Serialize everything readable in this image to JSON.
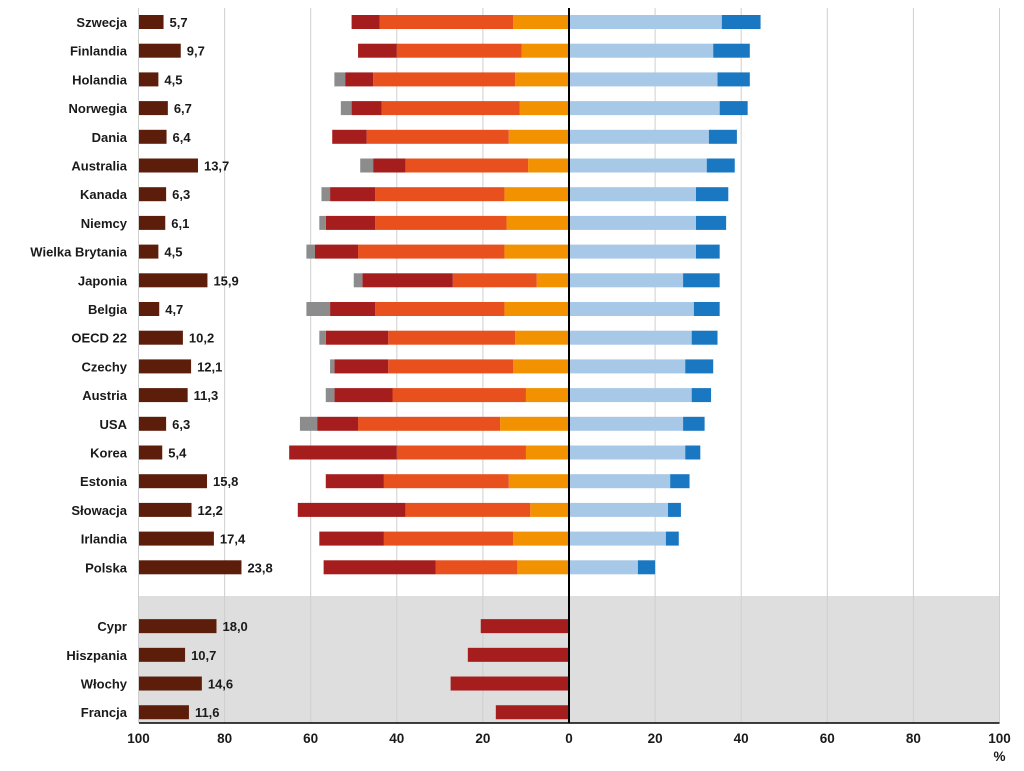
{
  "chart_data": {
    "type": "bar",
    "orientation": "horizontal",
    "countries": [
      "Szwecja",
      "Finlandia",
      "Holandia",
      "Norwegia",
      "Dania",
      "Australia",
      "Kanada",
      "Niemcy",
      "Wielka Brytania",
      "Japonia",
      "Belgia",
      "OECD 22",
      "Czechy",
      "Austria",
      "USA",
      "Korea",
      "Estonia",
      "Słowacja",
      "Irlandia",
      "Polska"
    ],
    "left_values": [
      5.7,
      9.7,
      4.5,
      6.7,
      6.4,
      13.7,
      6.3,
      6.1,
      4.5,
      15.9,
      4.7,
      10.2,
      12.1,
      11.3,
      6.3,
      5.4,
      15.8,
      12.2,
      17.4,
      23.8
    ],
    "left_value_labels": [
      "5,7",
      "9,7",
      "4,5",
      "6,7",
      "6,4",
      "13,7",
      "6,3",
      "6,1",
      "4,5",
      "15,9",
      "4,7",
      "10,2",
      "12,1",
      "11,3",
      "6,3",
      "5,4",
      "15,8",
      "12,2",
      "17,4",
      "23,8"
    ],
    "stacked_left": {
      "series": [
        {
          "name": "segment-1",
          "color": "#f39200",
          "values": [
            13,
            11,
            12.5,
            11.5,
            14,
            9.5,
            15,
            14.5,
            15,
            7.5,
            15,
            12.5,
            13,
            10,
            16,
            10,
            14,
            9,
            13,
            12
          ]
        },
        {
          "name": "segment-2",
          "color": "#e8501e",
          "values": [
            31,
            29,
            33,
            32,
            33,
            28.5,
            30,
            30.5,
            34,
            19.5,
            30,
            29.5,
            29,
            31,
            33,
            30,
            29,
            29,
            30,
            19
          ]
        },
        {
          "name": "segment-3",
          "color": "#a61d1d",
          "values": [
            6.5,
            9,
            6.5,
            7,
            8,
            7.5,
            10.5,
            11.5,
            10,
            21,
            10.5,
            14.5,
            12.5,
            13.5,
            9.5,
            25,
            13.5,
            25,
            15,
            26
          ]
        },
        {
          "name": "segment-4",
          "color": "#8c8c8c",
          "values": [
            0,
            0,
            2.5,
            2.5,
            0,
            3,
            2,
            1.5,
            2,
            2,
            5.5,
            1.5,
            1,
            2,
            4,
            0,
            0,
            0,
            0,
            0
          ]
        }
      ]
    },
    "stacked_right": {
      "series": [
        {
          "name": "segment-1",
          "color": "#a8c8e8",
          "values": [
            35.5,
            33.5,
            34.5,
            35,
            32.5,
            32,
            29.5,
            29.5,
            29.5,
            26.5,
            29,
            28.5,
            27,
            28.5,
            26.5,
            27,
            23.5,
            23,
            22.5,
            16
          ]
        },
        {
          "name": "segment-2",
          "color": "#1a78c2",
          "values": [
            9,
            8.5,
            7.5,
            6.5,
            6.5,
            6.5,
            7.5,
            7,
            5.5,
            8.5,
            6,
            6,
            6.5,
            4.5,
            5,
            3.5,
            4.5,
            3,
            3,
            4
          ]
        }
      ]
    },
    "bottom_group": {
      "countries": [
        "Cypr",
        "Hiszpania",
        "Włochy",
        "Francja"
      ],
      "left_values": [
        18.0,
        10.7,
        14.6,
        11.6
      ],
      "left_value_labels": [
        "18,0",
        "10,7",
        "14,6",
        "11,6"
      ],
      "center_values": [
        20.5,
        23.5,
        27.5,
        17
      ],
      "center_color": "#a61d1d"
    },
    "highlighted_country": "Polska",
    "xaxis": {
      "ticks": [
        100,
        80,
        60,
        40,
        20,
        0,
        20,
        40,
        60,
        80,
        100
      ],
      "range": [
        -100,
        100
      ],
      "unit": "%"
    },
    "left_bar_color": "#5c1e0a",
    "shaded_region_color": "#dedede",
    "grid": true
  }
}
